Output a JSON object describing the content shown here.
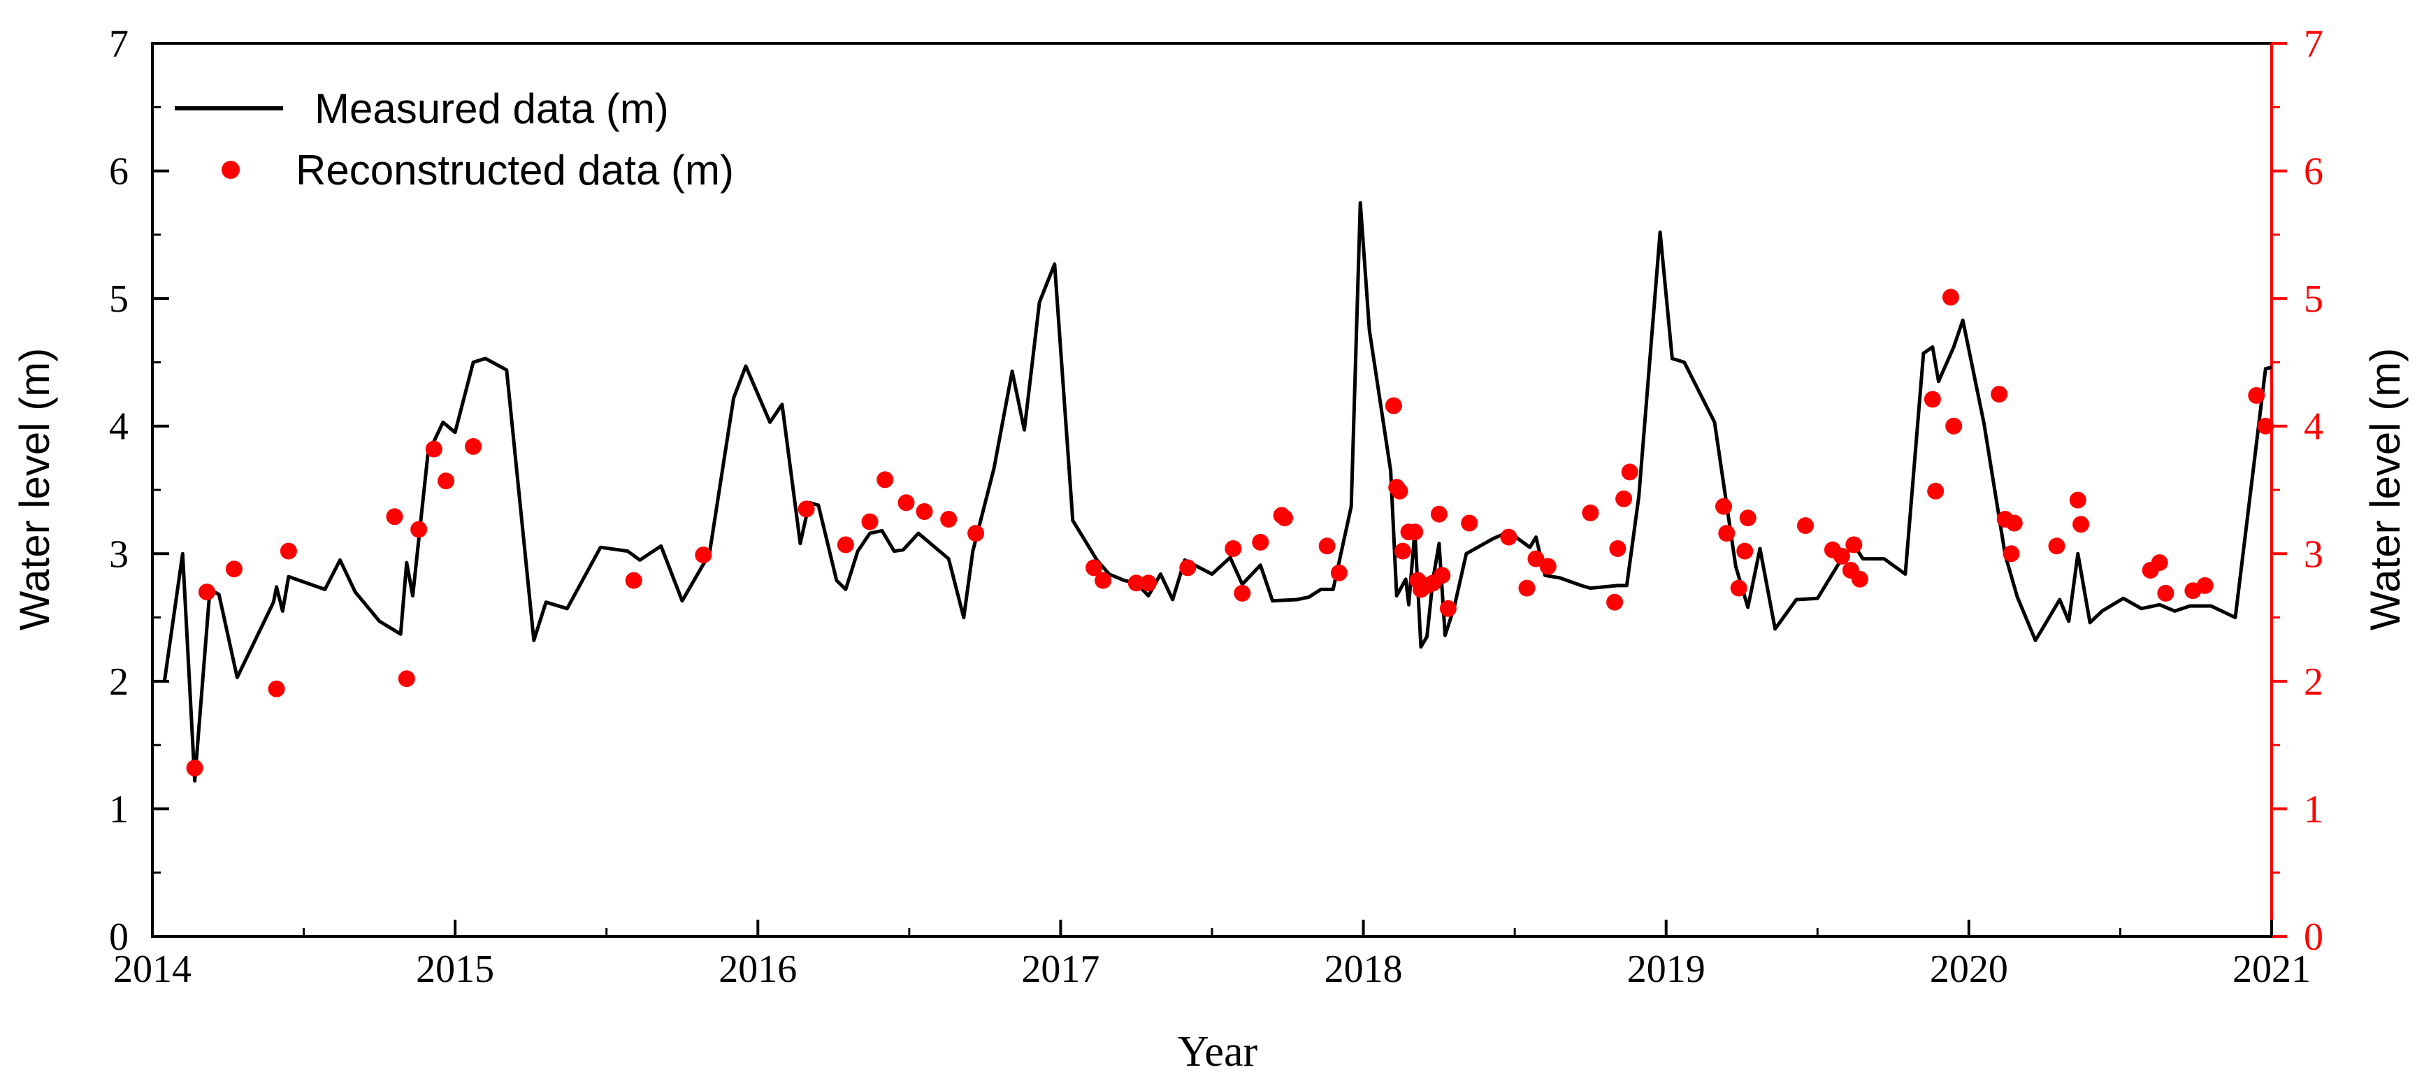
{
  "chart_data": {
    "type": "line+scatter",
    "xlabel": "Year",
    "ylabel_left": "Water level (m)",
    "ylabel_right": "Water level (m)",
    "xlim": [
      2014,
      2021
    ],
    "ylim": [
      0,
      7
    ],
    "x_ticks": [
      "2014",
      "2015",
      "2016",
      "2017",
      "2018",
      "2019",
      "2020",
      "2021"
    ],
    "y_ticks": [
      "0",
      "1",
      "2",
      "3",
      "4",
      "5",
      "6",
      "7"
    ],
    "legend_position": "top-left",
    "colors": {
      "measured": "#000000",
      "reconstructed": "#ff0000",
      "right_axis": "#ff0000"
    },
    "series": [
      {
        "name": "Measured data (m)",
        "kind": "line",
        "x": [
          2014.04,
          2014.1,
          2014.14,
          2014.19,
          2014.22,
          2014.28,
          2014.4,
          2014.41,
          2014.43,
          2014.45,
          2014.57,
          2014.62,
          2014.67,
          2014.75,
          2014.82,
          2014.84,
          2014.86,
          2014.91,
          2014.96,
          2015.0,
          2015.06,
          2015.1,
          2015.17,
          2015.26,
          2015.3,
          2015.37,
          2015.48,
          2015.57,
          2015.61,
          2015.68,
          2015.75,
          2015.84,
          2015.92,
          2015.96,
          2016.04,
          2016.08,
          2016.14,
          2016.17,
          2016.2,
          2016.26,
          2016.29,
          2016.33,
          2016.37,
          2016.41,
          2016.45,
          2016.48,
          2016.53,
          2016.63,
          2016.68,
          2016.71,
          2016.78,
          2016.84,
          2016.88,
          2016.93,
          2016.98,
          2017.04,
          2017.12,
          2017.16,
          2017.21,
          2017.25,
          2017.29,
          2017.33,
          2017.37,
          2017.41,
          2017.5,
          2017.56,
          2017.6,
          2017.66,
          2017.7,
          2017.78,
          2017.82,
          2017.86,
          2017.9,
          2017.96,
          2017.99,
          2018.02,
          2018.09,
          2018.11,
          2018.14,
          2018.15,
          2018.17,
          2018.19,
          2018.21,
          2018.23,
          2018.25,
          2018.27,
          2018.3,
          2018.34,
          2018.43,
          2018.48,
          2018.55,
          2018.57,
          2018.6,
          2018.65,
          2018.72,
          2018.75,
          2018.84,
          2018.87,
          2018.91,
          2018.98,
          2019.02,
          2019.06,
          2019.16,
          2019.23,
          2019.27,
          2019.31,
          2019.36,
          2019.43,
          2019.5,
          2019.58,
          2019.62,
          2019.65,
          2019.72,
          2019.79,
          2019.85,
          2019.88,
          2019.9,
          2019.95,
          2019.98,
          2020.05,
          2020.12,
          2020.16,
          2020.22,
          2020.3,
          2020.33,
          2020.36,
          2020.4,
          2020.44,
          2020.51,
          2020.57,
          2020.63,
          2020.68,
          2020.73,
          2020.8,
          2020.88,
          2020.98,
          2021.0
        ],
        "y": [
          2.0,
          3.0,
          1.22,
          2.72,
          2.68,
          2.03,
          2.62,
          2.74,
          2.55,
          2.82,
          2.72,
          2.95,
          2.7,
          2.47,
          2.37,
          2.93,
          2.67,
          3.78,
          4.03,
          3.95,
          4.5,
          4.53,
          4.44,
          2.32,
          2.62,
          2.57,
          3.05,
          3.02,
          2.95,
          3.06,
          2.63,
          3.0,
          4.22,
          4.47,
          4.03,
          4.17,
          3.08,
          3.4,
          3.38,
          2.79,
          2.72,
          3.02,
          3.16,
          3.18,
          3.02,
          3.03,
          3.16,
          2.96,
          2.5,
          3.02,
          3.67,
          4.43,
          3.97,
          4.97,
          5.27,
          3.26,
          2.95,
          2.84,
          2.79,
          2.77,
          2.67,
          2.84,
          2.64,
          2.95,
          2.84,
          2.97,
          2.76,
          2.91,
          2.63,
          2.64,
          2.66,
          2.72,
          2.72,
          3.37,
          5.75,
          4.75,
          3.65,
          2.67,
          2.8,
          2.6,
          3.18,
          2.27,
          2.35,
          2.8,
          3.08,
          2.36,
          2.58,
          3.0,
          3.12,
          3.17,
          3.05,
          3.13,
          2.83,
          2.81,
          2.75,
          2.73,
          2.75,
          2.75,
          3.45,
          5.52,
          4.53,
          4.5,
          4.03,
          2.9,
          2.58,
          3.04,
          2.41,
          2.64,
          2.65,
          2.96,
          3.07,
          2.96,
          2.96,
          2.84,
          4.57,
          4.62,
          4.35,
          4.62,
          4.83,
          4.02,
          2.99,
          2.66,
          2.32,
          2.64,
          2.47,
          3.0,
          2.46,
          2.55,
          2.65,
          2.57,
          2.6,
          2.55,
          2.59,
          2.59,
          2.5,
          4.45,
          4.46
        ]
      },
      {
        "name": "Reconstructed data (m)",
        "kind": "scatter",
        "x": [
          2014.14,
          2014.18,
          2014.27,
          2014.41,
          2014.45,
          2014.8,
          2014.84,
          2014.88,
          2014.93,
          2014.97,
          2015.06,
          2015.59,
          2015.82,
          2016.16,
          2016.29,
          2016.37,
          2016.42,
          2016.49,
          2016.55,
          2016.63,
          2016.72,
          2017.11,
          2017.14,
          2017.25,
          2017.29,
          2017.42,
          2017.57,
          2017.6,
          2017.66,
          2017.73,
          2017.74,
          2017.88,
          2017.92,
          2018.1,
          2018.11,
          2018.12,
          2018.13,
          2018.15,
          2018.17,
          2018.18,
          2018.19,
          2018.21,
          2018.23,
          2018.25,
          2018.26,
          2018.28,
          2018.35,
          2018.48,
          2018.54,
          2018.57,
          2018.61,
          2018.75,
          2018.83,
          2018.84,
          2018.86,
          2018.88,
          2019.19,
          2019.2,
          2019.24,
          2019.26,
          2019.27,
          2019.46,
          2019.55,
          2019.58,
          2019.61,
          2019.62,
          2019.64,
          2019.88,
          2019.89,
          2019.94,
          2019.95,
          2020.1,
          2020.12,
          2020.14,
          2020.15,
          2020.29,
          2020.36,
          2020.37,
          2020.6,
          2020.63,
          2020.65,
          2020.74,
          2020.78,
          2020.95,
          2020.98
        ],
        "y": [
          1.32,
          2.7,
          2.88,
          1.94,
          3.02,
          3.29,
          2.02,
          3.19,
          3.82,
          3.57,
          3.84,
          2.79,
          2.99,
          3.35,
          3.07,
          3.25,
          3.58,
          3.4,
          3.33,
          3.27,
          3.16,
          2.89,
          2.79,
          2.77,
          2.77,
          2.89,
          3.04,
          2.69,
          3.09,
          3.3,
          3.28,
          3.06,
          2.85,
          4.16,
          3.52,
          3.49,
          3.02,
          3.17,
          3.17,
          2.79,
          2.72,
          2.75,
          2.77,
          3.31,
          2.83,
          2.57,
          3.24,
          3.13,
          2.73,
          2.96,
          2.9,
          3.32,
          2.62,
          3.04,
          3.43,
          3.64,
          3.37,
          3.16,
          2.73,
          3.02,
          3.28,
          3.22,
          3.03,
          2.98,
          2.87,
          3.07,
          2.8,
          4.21,
          3.49,
          5.01,
          4.0,
          4.25,
          3.27,
          3.0,
          3.24,
          3.06,
          3.42,
          3.23,
          2.87,
          2.93,
          2.69,
          2.71,
          2.75,
          4.24,
          4.0
        ]
      }
    ]
  }
}
